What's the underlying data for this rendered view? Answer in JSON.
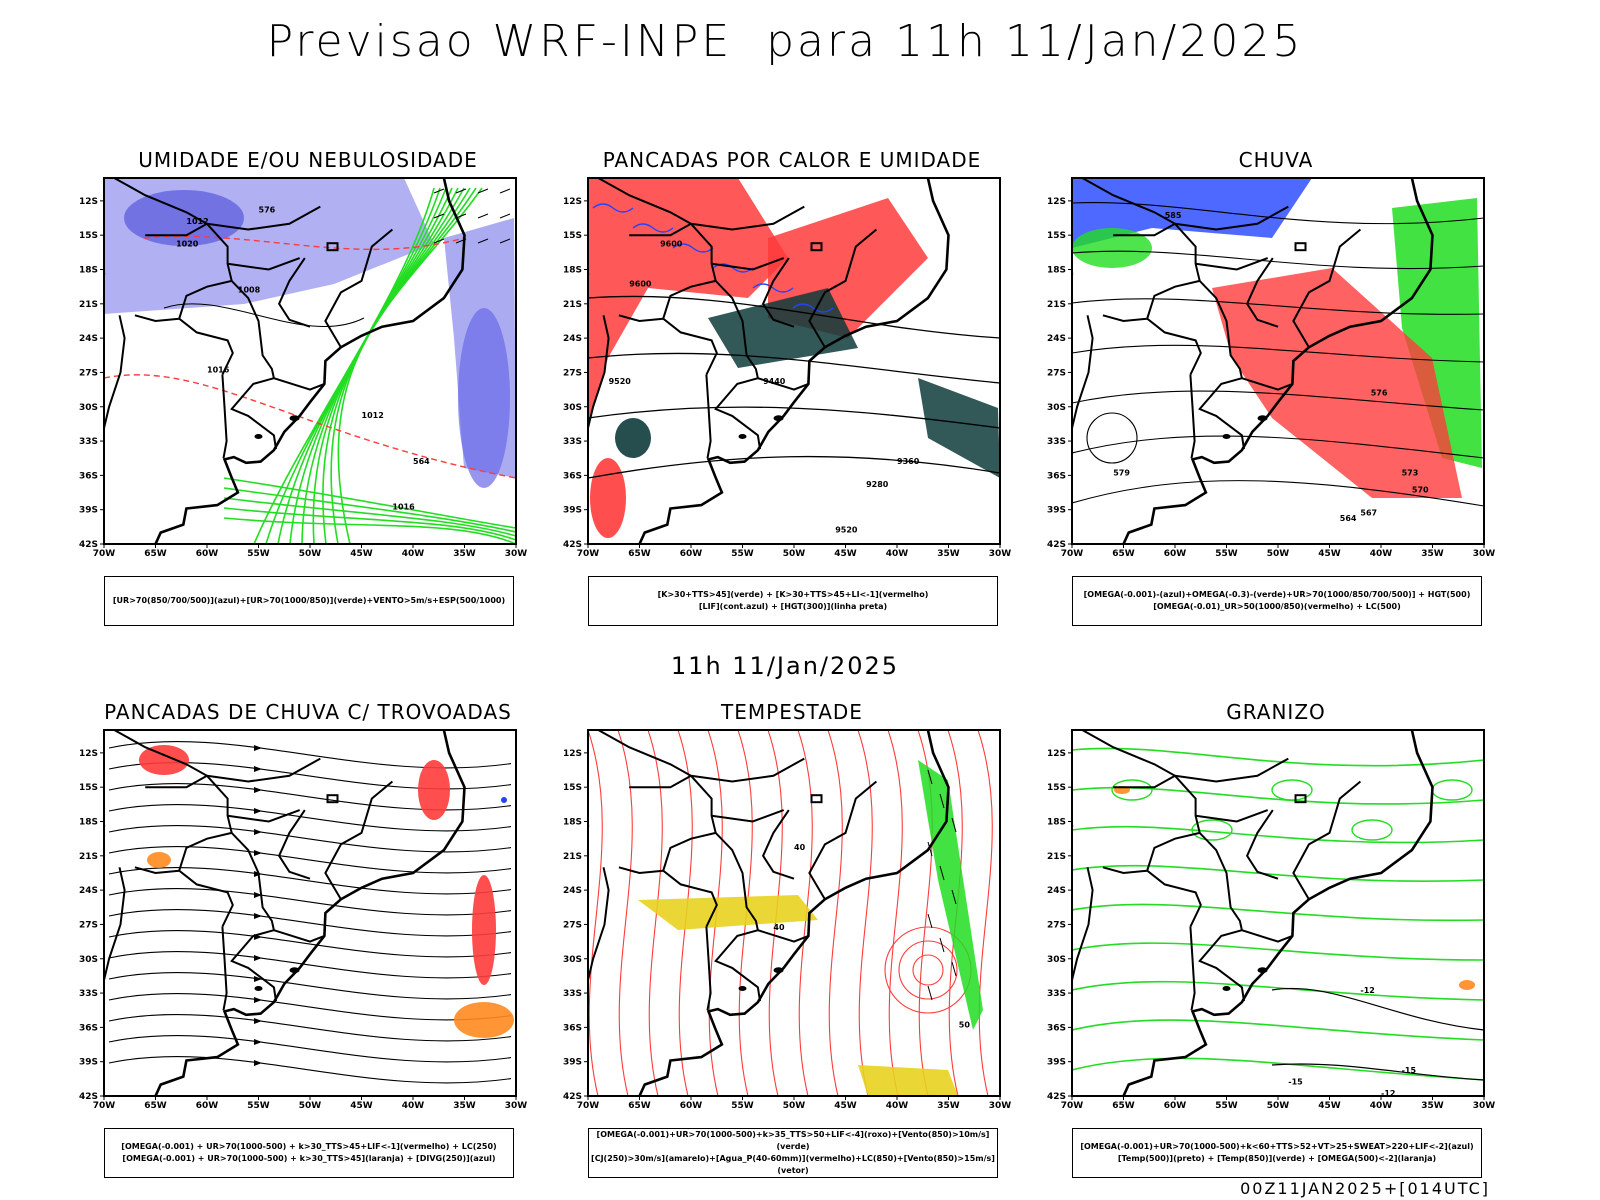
{
  "title": "Previsao WRF-INPE  para 11h 11/Jan/2025",
  "mid_time": "11h 11/Jan/2025",
  "footer": "00Z11JAN2025+[014UTC]",
  "axes": {
    "lat_labels": [
      "12S",
      "15S",
      "18S",
      "21S",
      "24S",
      "27S",
      "30S",
      "33S",
      "36S",
      "39S",
      "42S"
    ],
    "lon_labels": [
      "70W",
      "65W",
      "60W",
      "55W",
      "50W",
      "45W",
      "40W",
      "35W",
      "30W"
    ]
  },
  "colors": {
    "red": "#ff3b3b",
    "green": "#22dd22",
    "blue": "#2244ff",
    "lavender": "#9c9cf0",
    "darkteal": "#0e3b3b",
    "orange": "#ff8a1e",
    "yellow": "#e8d21e",
    "black": "#000000"
  },
  "panels": [
    {
      "id": "umidade",
      "title": "UMIDADE E/OU NEBULOSIDADE",
      "legend": [
        "[UR>70(850/700/500)](azul)+[UR>70(1000/850)](verde)+VENTO>5m/s+ESP(500/1000)"
      ],
      "labels": [
        "1012",
        "1016",
        "1008",
        "1012",
        "1016",
        "576",
        "1020",
        "564"
      ]
    },
    {
      "id": "pancadas-calor",
      "title": "PANCADAS POR CALOR E UMIDADE",
      "legend": [
        "[K>30+TTS>45](verde) + [K>30+TTS>45+LI<-1](vermelho)",
        "[LIF](cont.azul) + [HGT(300)](linha preta)"
      ],
      "labels": [
        "9600",
        "9600",
        "9520",
        "9440",
        "9360",
        "9280",
        "9520"
      ]
    },
    {
      "id": "chuva",
      "title": "CHUVA",
      "legend": [
        "[OMEGA(-0.001)-(azul)+OMEGA(-0.3)-(verde)+UR>70(1000/850/700/500)] + HGT(500)",
        "[OMEGA(-0.01)_UR>50(1000/850)(vermelho) + LC(500)"
      ],
      "labels": [
        "585",
        "576",
        "573",
        "570",
        "567",
        "564",
        "579"
      ]
    },
    {
      "id": "trovoadas",
      "title": "PANCADAS DE CHUVA C/ TROVOADAS",
      "legend": [
        "[OMEGA(-0.001) + UR>70(1000-500) + k>30_TTS>45+LIF<-1](vermelho) + LC(250)",
        "[OMEGA(-0.001) + UR>70(1000-500) + k>30_TTS>45](laranja) + [DIVG(250)](azul)"
      ],
      "labels": []
    },
    {
      "id": "tempestade",
      "title": "TEMPESTADE",
      "legend": [
        "[OMEGA(-0.001)+UR>70(1000-500)+k>35_TTS>50+LIF<-4](roxo)+[Vento(850)>10m/s](verde)",
        "[CJ(250)>30m/s](amarelo)+[Agua_P(40-60mm)](vermelho)+LC(850)+[Vento(850)>15m/s](vetor)"
      ],
      "labels": [
        "40",
        "40",
        "50"
      ]
    },
    {
      "id": "granizo",
      "title": "GRANIZO",
      "legend": [
        "[OMEGA(-0.001)+UR>70(1000-500)+k<60+TTS>52+VT>25+SWEAT>220+LIF<-2](azul)",
        "[Temp(500)](preto) + [Temp(850)](verde) + [OMEGA(500)<-2](laranja)"
      ],
      "labels": [
        "-12",
        "-15",
        "-12",
        "-15"
      ]
    }
  ]
}
